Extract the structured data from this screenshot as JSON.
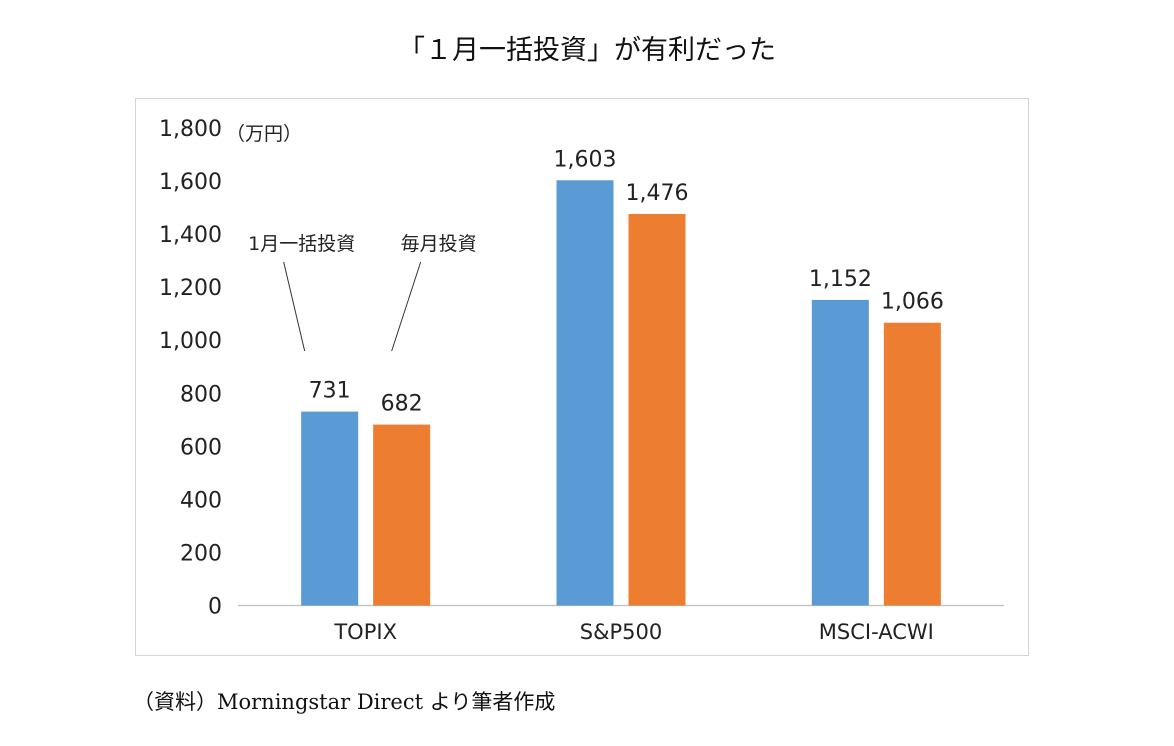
{
  "title": "「１月一括投資」が有利だった",
  "source": "（資料）Morningstar Direct より筆者作成",
  "chart_data": {
    "type": "bar",
    "categories": [
      "TOPIX",
      "S&P500",
      "MSCI-ACWI"
    ],
    "series": [
      {
        "name": "1月一括投資",
        "values": [
          731,
          1603,
          1152
        ],
        "color": "#5b9bd5"
      },
      {
        "name": "毎月投資",
        "values": [
          682,
          1476,
          1066
        ],
        "color": "#ed7d31"
      }
    ],
    "data_labels": [
      [
        "731",
        "1,603",
        "1,152"
      ],
      [
        "682",
        "1,476",
        "1,066"
      ]
    ],
    "unit_label": "（万円）",
    "ylim": [
      0,
      1800
    ],
    "yticks": [
      "0",
      "200",
      "400",
      "600",
      "800",
      "1,000",
      "1,200",
      "1,400",
      "1,600",
      "1,800"
    ],
    "grid": false,
    "legend": "callouts on first category"
  }
}
